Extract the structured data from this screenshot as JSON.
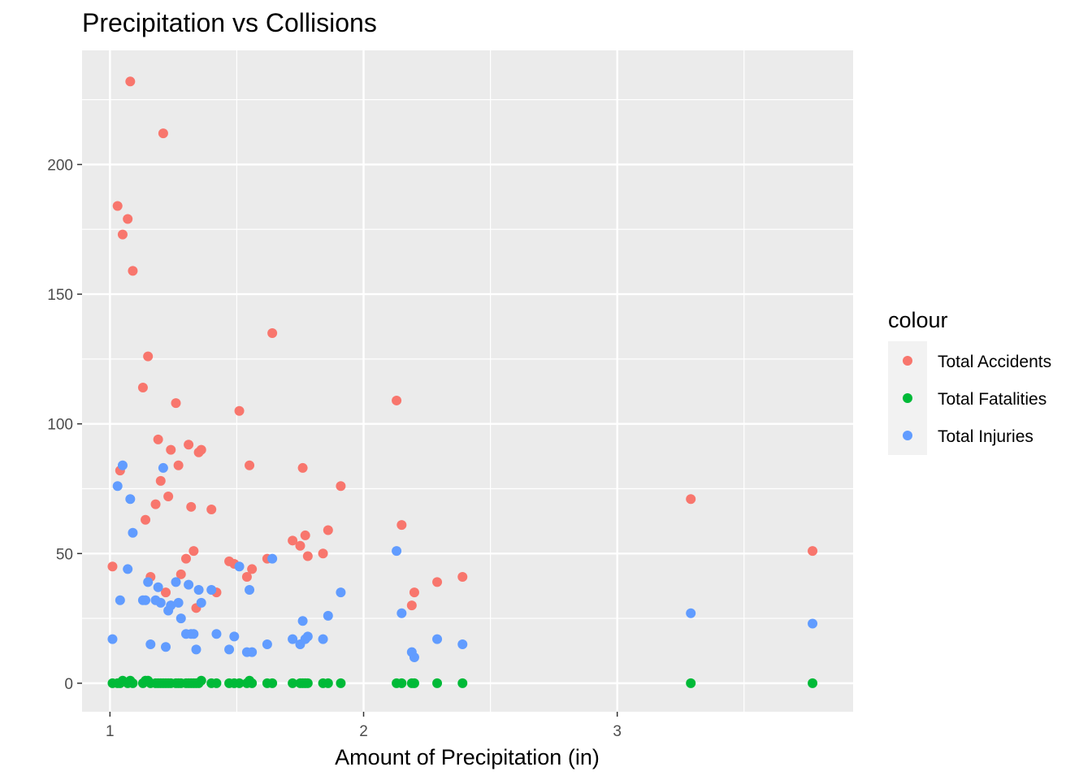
{
  "chart_data": {
    "type": "scatter",
    "title": "Precipitation vs Collisions",
    "xlabel": "Amount of Precipitation (in)",
    "ylabel": "",
    "xlim": [
      0.89,
      3.93
    ],
    "ylim": [
      -11,
      244
    ],
    "x_ticks": [
      1,
      2,
      3
    ],
    "y_ticks": [
      0,
      50,
      100,
      150,
      200
    ],
    "grid": true,
    "legend": {
      "title": "colour",
      "position": "right"
    },
    "series": [
      {
        "name": "Total Accidents",
        "color": "#F8766D",
        "points": [
          [
            1.01,
            45
          ],
          [
            1.03,
            184
          ],
          [
            1.04,
            82
          ],
          [
            1.05,
            173
          ],
          [
            1.07,
            179
          ],
          [
            1.08,
            232
          ],
          [
            1.09,
            159
          ],
          [
            1.13,
            114
          ],
          [
            1.14,
            63
          ],
          [
            1.15,
            126
          ],
          [
            1.16,
            41
          ],
          [
            1.18,
            69
          ],
          [
            1.19,
            94
          ],
          [
            1.2,
            78
          ],
          [
            1.21,
            212
          ],
          [
            1.22,
            35
          ],
          [
            1.23,
            72
          ],
          [
            1.24,
            90
          ],
          [
            1.26,
            108
          ],
          [
            1.27,
            84
          ],
          [
            1.28,
            42
          ],
          [
            1.3,
            48
          ],
          [
            1.31,
            92
          ],
          [
            1.32,
            68
          ],
          [
            1.33,
            51
          ],
          [
            1.34,
            29
          ],
          [
            1.35,
            89
          ],
          [
            1.36,
            90
          ],
          [
            1.4,
            67
          ],
          [
            1.42,
            35
          ],
          [
            1.47,
            47
          ],
          [
            1.49,
            46
          ],
          [
            1.51,
            105
          ],
          [
            1.54,
            41
          ],
          [
            1.55,
            84
          ],
          [
            1.56,
            44
          ],
          [
            1.62,
            48
          ],
          [
            1.64,
            135
          ],
          [
            1.72,
            55
          ],
          [
            1.75,
            53
          ],
          [
            1.76,
            83
          ],
          [
            1.77,
            57
          ],
          [
            1.78,
            49
          ],
          [
            1.84,
            50
          ],
          [
            1.86,
            59
          ],
          [
            1.91,
            76
          ],
          [
            2.13,
            109
          ],
          [
            2.15,
            61
          ],
          [
            2.19,
            30
          ],
          [
            2.2,
            35
          ],
          [
            2.29,
            39
          ],
          [
            2.39,
            41
          ],
          [
            3.29,
            71
          ],
          [
            3.77,
            51
          ]
        ]
      },
      {
        "name": "Total Fatalities",
        "color": "#00BA38",
        "points": [
          [
            1.01,
            0
          ],
          [
            1.03,
            0
          ],
          [
            1.04,
            0
          ],
          [
            1.05,
            1
          ],
          [
            1.07,
            0
          ],
          [
            1.08,
            1
          ],
          [
            1.09,
            0
          ],
          [
            1.13,
            0
          ],
          [
            1.14,
            1
          ],
          [
            1.15,
            1
          ],
          [
            1.16,
            0
          ],
          [
            1.18,
            0
          ],
          [
            1.19,
            0
          ],
          [
            1.2,
            0
          ],
          [
            1.21,
            0
          ],
          [
            1.22,
            0
          ],
          [
            1.23,
            0
          ],
          [
            1.24,
            0
          ],
          [
            1.26,
            0
          ],
          [
            1.27,
            0
          ],
          [
            1.28,
            0
          ],
          [
            1.3,
            0
          ],
          [
            1.31,
            0
          ],
          [
            1.32,
            0
          ],
          [
            1.33,
            0
          ],
          [
            1.34,
            0
          ],
          [
            1.35,
            0
          ],
          [
            1.36,
            1
          ],
          [
            1.4,
            0
          ],
          [
            1.42,
            0
          ],
          [
            1.47,
            0
          ],
          [
            1.49,
            0
          ],
          [
            1.51,
            0
          ],
          [
            1.54,
            0
          ],
          [
            1.55,
            1
          ],
          [
            1.56,
            0
          ],
          [
            1.62,
            0
          ],
          [
            1.64,
            0
          ],
          [
            1.72,
            0
          ],
          [
            1.75,
            0
          ],
          [
            1.76,
            0
          ],
          [
            1.77,
            0
          ],
          [
            1.78,
            0
          ],
          [
            1.84,
            0
          ],
          [
            1.86,
            0
          ],
          [
            1.91,
            0
          ],
          [
            2.13,
            0
          ],
          [
            2.15,
            0
          ],
          [
            2.19,
            0
          ],
          [
            2.2,
            0
          ],
          [
            2.29,
            0
          ],
          [
            2.39,
            0
          ],
          [
            3.29,
            0
          ],
          [
            3.77,
            0
          ]
        ]
      },
      {
        "name": "Total Injuries",
        "color": "#619CFF",
        "points": [
          [
            1.01,
            17
          ],
          [
            1.03,
            76
          ],
          [
            1.04,
            32
          ],
          [
            1.05,
            84
          ],
          [
            1.07,
            44
          ],
          [
            1.08,
            71
          ],
          [
            1.09,
            58
          ],
          [
            1.13,
            32
          ],
          [
            1.14,
            32
          ],
          [
            1.15,
            39
          ],
          [
            1.16,
            15
          ],
          [
            1.18,
            32
          ],
          [
            1.19,
            37
          ],
          [
            1.2,
            31
          ],
          [
            1.21,
            83
          ],
          [
            1.22,
            14
          ],
          [
            1.23,
            28
          ],
          [
            1.24,
            30
          ],
          [
            1.26,
            39
          ],
          [
            1.27,
            31
          ],
          [
            1.28,
            25
          ],
          [
            1.3,
            19
          ],
          [
            1.31,
            38
          ],
          [
            1.32,
            19
          ],
          [
            1.33,
            19
          ],
          [
            1.34,
            13
          ],
          [
            1.35,
            36
          ],
          [
            1.36,
            31
          ],
          [
            1.4,
            36
          ],
          [
            1.42,
            19
          ],
          [
            1.47,
            13
          ],
          [
            1.49,
            18
          ],
          [
            1.51,
            45
          ],
          [
            1.54,
            12
          ],
          [
            1.55,
            36
          ],
          [
            1.56,
            12
          ],
          [
            1.62,
            15
          ],
          [
            1.64,
            48
          ],
          [
            1.72,
            17
          ],
          [
            1.75,
            15
          ],
          [
            1.76,
            24
          ],
          [
            1.77,
            17
          ],
          [
            1.78,
            18
          ],
          [
            1.84,
            17
          ],
          [
            1.86,
            26
          ],
          [
            1.91,
            35
          ],
          [
            2.13,
            51
          ],
          [
            2.15,
            27
          ],
          [
            2.19,
            12
          ],
          [
            2.2,
            10
          ],
          [
            2.29,
            17
          ],
          [
            2.39,
            15
          ],
          [
            3.29,
            27
          ],
          [
            3.77,
            23
          ]
        ]
      }
    ]
  }
}
